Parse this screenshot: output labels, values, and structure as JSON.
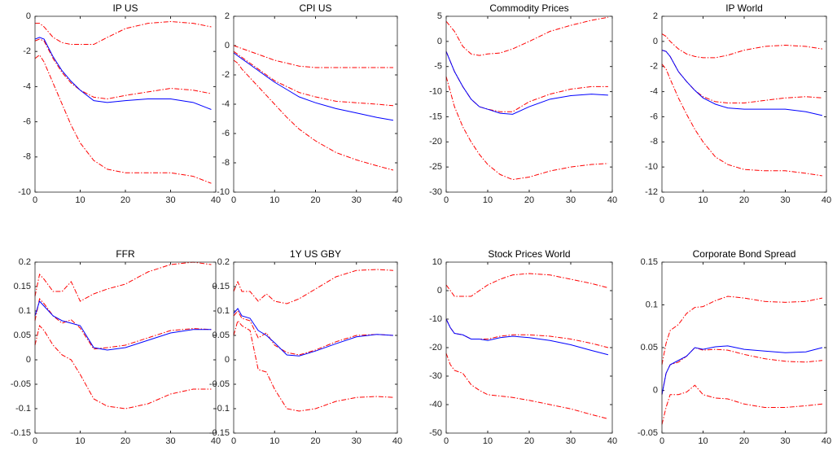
{
  "chart_data": [
    {
      "type": "line",
      "title": "IP US",
      "x": [
        0,
        1,
        2,
        4,
        6,
        8,
        10,
        13,
        16,
        20,
        25,
        30,
        35,
        39
      ],
      "xlim": [
        0,
        40
      ],
      "xticks": [
        0,
        10,
        20,
        30,
        40
      ],
      "ylim": [
        -10,
        0
      ],
      "yticks": [
        -10,
        -8,
        -6,
        -4,
        -2,
        0
      ],
      "series": [
        {
          "color": "#ff0000",
          "style": "dashdot",
          "values": [
            -0.4,
            -0.4,
            -0.6,
            -1.2,
            -1.5,
            -1.6,
            -1.6,
            -1.6,
            -1.2,
            -0.7,
            -0.4,
            -0.3,
            -0.4,
            -0.6
          ]
        },
        {
          "color": "#ff0000",
          "style": "dashdot",
          "values": [
            -2.4,
            -2.2,
            -2.6,
            -3.8,
            -5.0,
            -6.2,
            -7.2,
            -8.2,
            -8.7,
            -8.9,
            -8.9,
            -8.9,
            -9.1,
            -9.5
          ]
        },
        {
          "color": "#ff0000",
          "style": "dashdot",
          "values": [
            -1.4,
            -1.3,
            -1.4,
            -2.4,
            -3.2,
            -3.8,
            -4.2,
            -4.6,
            -4.7,
            -4.5,
            -4.3,
            -4.1,
            -4.2,
            -4.4
          ]
        },
        {
          "color": "#0000ff",
          "style": "solid",
          "values": [
            -1.3,
            -1.2,
            -1.3,
            -2.3,
            -3.1,
            -3.7,
            -4.2,
            -4.8,
            -4.9,
            -4.8,
            -4.7,
            -4.7,
            -4.9,
            -5.3
          ]
        }
      ]
    },
    {
      "type": "line",
      "title": "CPI US",
      "x": [
        0,
        1,
        2,
        4,
        6,
        8,
        10,
        13,
        16,
        20,
        25,
        30,
        35,
        39
      ],
      "xlim": [
        0,
        40
      ],
      "xticks": [
        0,
        10,
        20,
        30,
        40
      ],
      "ylim": [
        -10,
        2
      ],
      "yticks": [
        -10,
        -8,
        -6,
        -4,
        -2,
        0,
        2
      ],
      "series": [
        {
          "color": "#ff0000",
          "style": "dashdot",
          "values": [
            0.0,
            -0.1,
            -0.2,
            -0.4,
            -0.6,
            -0.8,
            -1.0,
            -1.2,
            -1.4,
            -1.5,
            -1.5,
            -1.5,
            -1.5,
            -1.5
          ]
        },
        {
          "color": "#ff0000",
          "style": "dashdot",
          "values": [
            -1.0,
            -1.2,
            -1.6,
            -2.2,
            -2.8,
            -3.4,
            -4.0,
            -4.9,
            -5.7,
            -6.5,
            -7.3,
            -7.8,
            -8.2,
            -8.5
          ]
        },
        {
          "color": "#ff0000",
          "style": "dashdot",
          "values": [
            -0.4,
            -0.6,
            -0.8,
            -1.2,
            -1.6,
            -2.0,
            -2.4,
            -2.8,
            -3.2,
            -3.5,
            -3.8,
            -3.9,
            -4.0,
            -4.1
          ]
        },
        {
          "color": "#0000ff",
          "style": "solid",
          "values": [
            -0.5,
            -0.7,
            -0.9,
            -1.3,
            -1.7,
            -2.1,
            -2.5,
            -3.0,
            -3.5,
            -3.9,
            -4.3,
            -4.6,
            -4.9,
            -5.1
          ]
        }
      ]
    },
    {
      "type": "line",
      "title": "Commodity Prices",
      "x": [
        0,
        1,
        2,
        4,
        6,
        8,
        10,
        13,
        16,
        20,
        25,
        30,
        35,
        39
      ],
      "xlim": [
        0,
        40
      ],
      "xticks": [
        0,
        10,
        20,
        30,
        40
      ],
      "ylim": [
        -30,
        5
      ],
      "yticks": [
        -30,
        -25,
        -20,
        -15,
        -10,
        -5,
        0,
        5
      ],
      "series": [
        {
          "color": "#ff0000",
          "style": "dashdot",
          "values": [
            4,
            3,
            2,
            -1,
            -2.5,
            -2.8,
            -2.5,
            -2.3,
            -1.5,
            0,
            2,
            3.2,
            4.2,
            4.8
          ]
        },
        {
          "color": "#ff0000",
          "style": "dashdot",
          "values": [
            -7,
            -10,
            -13,
            -17,
            -20,
            -22.5,
            -24.5,
            -26.5,
            -27.5,
            -27,
            -25.8,
            -25,
            -24.5,
            -24.3
          ]
        },
        {
          "color": "#ff0000",
          "style": "dashdot",
          "values": [
            -2,
            -4,
            -6,
            -9,
            -11.5,
            -13,
            -13.5,
            -14,
            -14,
            -12,
            -10.5,
            -9.5,
            -9,
            -9
          ]
        },
        {
          "color": "#0000ff",
          "style": "solid",
          "values": [
            -2,
            -4,
            -6,
            -9,
            -11.5,
            -13,
            -13.5,
            -14.3,
            -14.5,
            -13,
            -11.5,
            -10.8,
            -10.5,
            -10.7
          ]
        }
      ]
    },
    {
      "type": "line",
      "title": "IP World",
      "x": [
        0,
        1,
        2,
        4,
        6,
        8,
        10,
        13,
        16,
        20,
        25,
        30,
        35,
        39
      ],
      "xlim": [
        0,
        40
      ],
      "xticks": [
        0,
        10,
        20,
        30,
        40
      ],
      "ylim": [
        -12,
        2
      ],
      "yticks": [
        -12,
        -10,
        -8,
        -6,
        -4,
        -2,
        0,
        2
      ],
      "series": [
        {
          "color": "#ff0000",
          "style": "dashdot",
          "values": [
            0.6,
            0.4,
            0,
            -0.6,
            -1.0,
            -1.2,
            -1.3,
            -1.3,
            -1.1,
            -0.7,
            -0.4,
            -0.3,
            -0.4,
            -0.6
          ]
        },
        {
          "color": "#ff0000",
          "style": "dashdot",
          "values": [
            -1.8,
            -2.2,
            -3.0,
            -4.5,
            -5.8,
            -7.0,
            -8.0,
            -9.2,
            -9.8,
            -10.2,
            -10.3,
            -10.3,
            -10.5,
            -10.7
          ]
        },
        {
          "color": "#ff0000",
          "style": "dashdot",
          "values": [
            -0.7,
            -0.8,
            -1.2,
            -2.4,
            -3.2,
            -3.9,
            -4.4,
            -4.8,
            -4.9,
            -4.9,
            -4.7,
            -4.5,
            -4.4,
            -4.5
          ]
        },
        {
          "color": "#0000ff",
          "style": "solid",
          "values": [
            -0.7,
            -0.8,
            -1.2,
            -2.4,
            -3.2,
            -3.9,
            -4.5,
            -5.0,
            -5.3,
            -5.4,
            -5.4,
            -5.4,
            -5.6,
            -5.9
          ]
        }
      ]
    },
    {
      "type": "line",
      "title": "FFR",
      "x": [
        0,
        1,
        2,
        4,
        6,
        8,
        10,
        13,
        16,
        20,
        25,
        30,
        35,
        39
      ],
      "xlim": [
        0,
        40
      ],
      "xticks": [
        0,
        10,
        20,
        30,
        40
      ],
      "ylim": [
        -0.15,
        0.2
      ],
      "yticks": [
        -0.15,
        -0.1,
        -0.05,
        0,
        0.05,
        0.1,
        0.15,
        0.2
      ],
      "series": [
        {
          "color": "#ff0000",
          "style": "dashdot",
          "values": [
            0.13,
            0.175,
            0.165,
            0.14,
            0.14,
            0.16,
            0.12,
            0.135,
            0.145,
            0.155,
            0.18,
            0.195,
            0.2,
            0.195
          ]
        },
        {
          "color": "#ff0000",
          "style": "dashdot",
          "values": [
            0.03,
            0.07,
            0.06,
            0.03,
            0.01,
            0.0,
            -0.03,
            -0.08,
            -0.095,
            -0.1,
            -0.09,
            -0.07,
            -0.06,
            -0.06
          ]
        },
        {
          "color": "#ff0000",
          "style": "dashdot",
          "values": [
            0.08,
            0.125,
            0.115,
            0.09,
            0.075,
            0.082,
            0.065,
            0.022,
            0.025,
            0.03,
            0.045,
            0.06,
            0.064,
            0.062
          ]
        },
        {
          "color": "#0000ff",
          "style": "solid",
          "values": [
            0.09,
            0.12,
            0.11,
            0.09,
            0.08,
            0.075,
            0.07,
            0.025,
            0.02,
            0.025,
            0.04,
            0.055,
            0.062,
            0.062
          ]
        }
      ]
    },
    {
      "type": "line",
      "title": "1Y US GBY",
      "x": [
        0,
        1,
        2,
        4,
        6,
        8,
        10,
        13,
        16,
        20,
        25,
        30,
        35,
        39
      ],
      "xlim": [
        0,
        40
      ],
      "xticks": [
        0,
        10,
        20,
        30,
        40
      ],
      "ylim": [
        -0.15,
        0.2
      ],
      "yticks": [
        -0.15,
        -0.1,
        -0.05,
        0,
        0.05,
        0.1,
        0.15,
        0.2
      ],
      "series": [
        {
          "color": "#ff0000",
          "style": "dashdot",
          "values": [
            0.14,
            0.16,
            0.14,
            0.14,
            0.12,
            0.135,
            0.12,
            0.115,
            0.125,
            0.145,
            0.17,
            0.183,
            0.185,
            0.183
          ]
        },
        {
          "color": "#ff0000",
          "style": "dashdot",
          "values": [
            0.05,
            0.08,
            0.07,
            0.06,
            -0.02,
            -0.025,
            -0.06,
            -0.1,
            -0.105,
            -0.1,
            -0.085,
            -0.077,
            -0.075,
            -0.077
          ]
        },
        {
          "color": "#ff0000",
          "style": "dashdot",
          "values": [
            0.09,
            0.1,
            0.085,
            0.08,
            0.045,
            0.055,
            0.03,
            0.015,
            0.01,
            0.02,
            0.037,
            0.05,
            0.052,
            0.05
          ]
        },
        {
          "color": "#0000ff",
          "style": "solid",
          "values": [
            0.095,
            0.105,
            0.09,
            0.085,
            0.06,
            0.05,
            0.035,
            0.01,
            0.008,
            0.018,
            0.033,
            0.047,
            0.052,
            0.05
          ]
        }
      ]
    },
    {
      "type": "line",
      "title": "Stock Prices World",
      "x": [
        0,
        1,
        2,
        4,
        6,
        8,
        10,
        13,
        16,
        20,
        25,
        30,
        35,
        39
      ],
      "xlim": [
        0,
        40
      ],
      "xticks": [
        0,
        10,
        20,
        30,
        40
      ],
      "ylim": [
        -50,
        10
      ],
      "yticks": [
        -50,
        -40,
        -30,
        -20,
        -10,
        0,
        10
      ],
      "series": [
        {
          "color": "#ff0000",
          "style": "dashdot",
          "values": [
            2,
            0,
            -2,
            -2,
            -2,
            0,
            2,
            4,
            5.5,
            6,
            5.5,
            4,
            2.5,
            1
          ]
        },
        {
          "color": "#ff0000",
          "style": "dashdot",
          "values": [
            -22,
            -26,
            -28,
            -29,
            -33,
            -35,
            -36.5,
            -37,
            -37.5,
            -38.5,
            -40,
            -41.5,
            -43.5,
            -45
          ]
        },
        {
          "color": "#ff0000",
          "style": "dashdot",
          "values": [
            -10,
            -13,
            -15,
            -15.5,
            -17,
            -17,
            -17,
            -16,
            -15.5,
            -15.5,
            -16,
            -17,
            -18.5,
            -20
          ]
        },
        {
          "color": "#0000ff",
          "style": "solid",
          "values": [
            -10,
            -13,
            -15,
            -15.5,
            -17,
            -17,
            -17.5,
            -16.5,
            -16,
            -16.5,
            -17.5,
            -19,
            -21,
            -22.5
          ]
        }
      ]
    },
    {
      "type": "line",
      "title": "Corporate Bond Spread",
      "x": [
        0,
        1,
        2,
        4,
        6,
        8,
        10,
        13,
        16,
        20,
        25,
        30,
        35,
        39
      ],
      "xlim": [
        0,
        40
      ],
      "xticks": [
        0,
        10,
        20,
        30,
        40
      ],
      "ylim": [
        -0.05,
        0.15
      ],
      "yticks": [
        -0.05,
        0,
        0.05,
        0.1,
        0.15
      ],
      "series": [
        {
          "color": "#ff0000",
          "style": "dashdot",
          "values": [
            0.03,
            0.055,
            0.07,
            0.077,
            0.09,
            0.097,
            0.098,
            0.105,
            0.11,
            0.108,
            0.104,
            0.103,
            0.104,
            0.108
          ]
        },
        {
          "color": "#ff0000",
          "style": "dashdot",
          "values": [
            -0.04,
            -0.02,
            -0.005,
            -0.005,
            -0.002,
            0.006,
            -0.005,
            -0.009,
            -0.01,
            -0.016,
            -0.02,
            -0.02,
            -0.018,
            -0.016
          ]
        },
        {
          "color": "#ff0000",
          "style": "dashdot",
          "values": [
            -0.005,
            0.02,
            0.03,
            0.033,
            0.04,
            0.05,
            0.047,
            0.048,
            0.047,
            0.042,
            0.037,
            0.034,
            0.033,
            0.035
          ]
        },
        {
          "color": "#0000ff",
          "style": "solid",
          "values": [
            -0.005,
            0.02,
            0.03,
            0.035,
            0.04,
            0.05,
            0.048,
            0.051,
            0.052,
            0.048,
            0.046,
            0.044,
            0.045,
            0.05
          ]
        }
      ]
    }
  ]
}
